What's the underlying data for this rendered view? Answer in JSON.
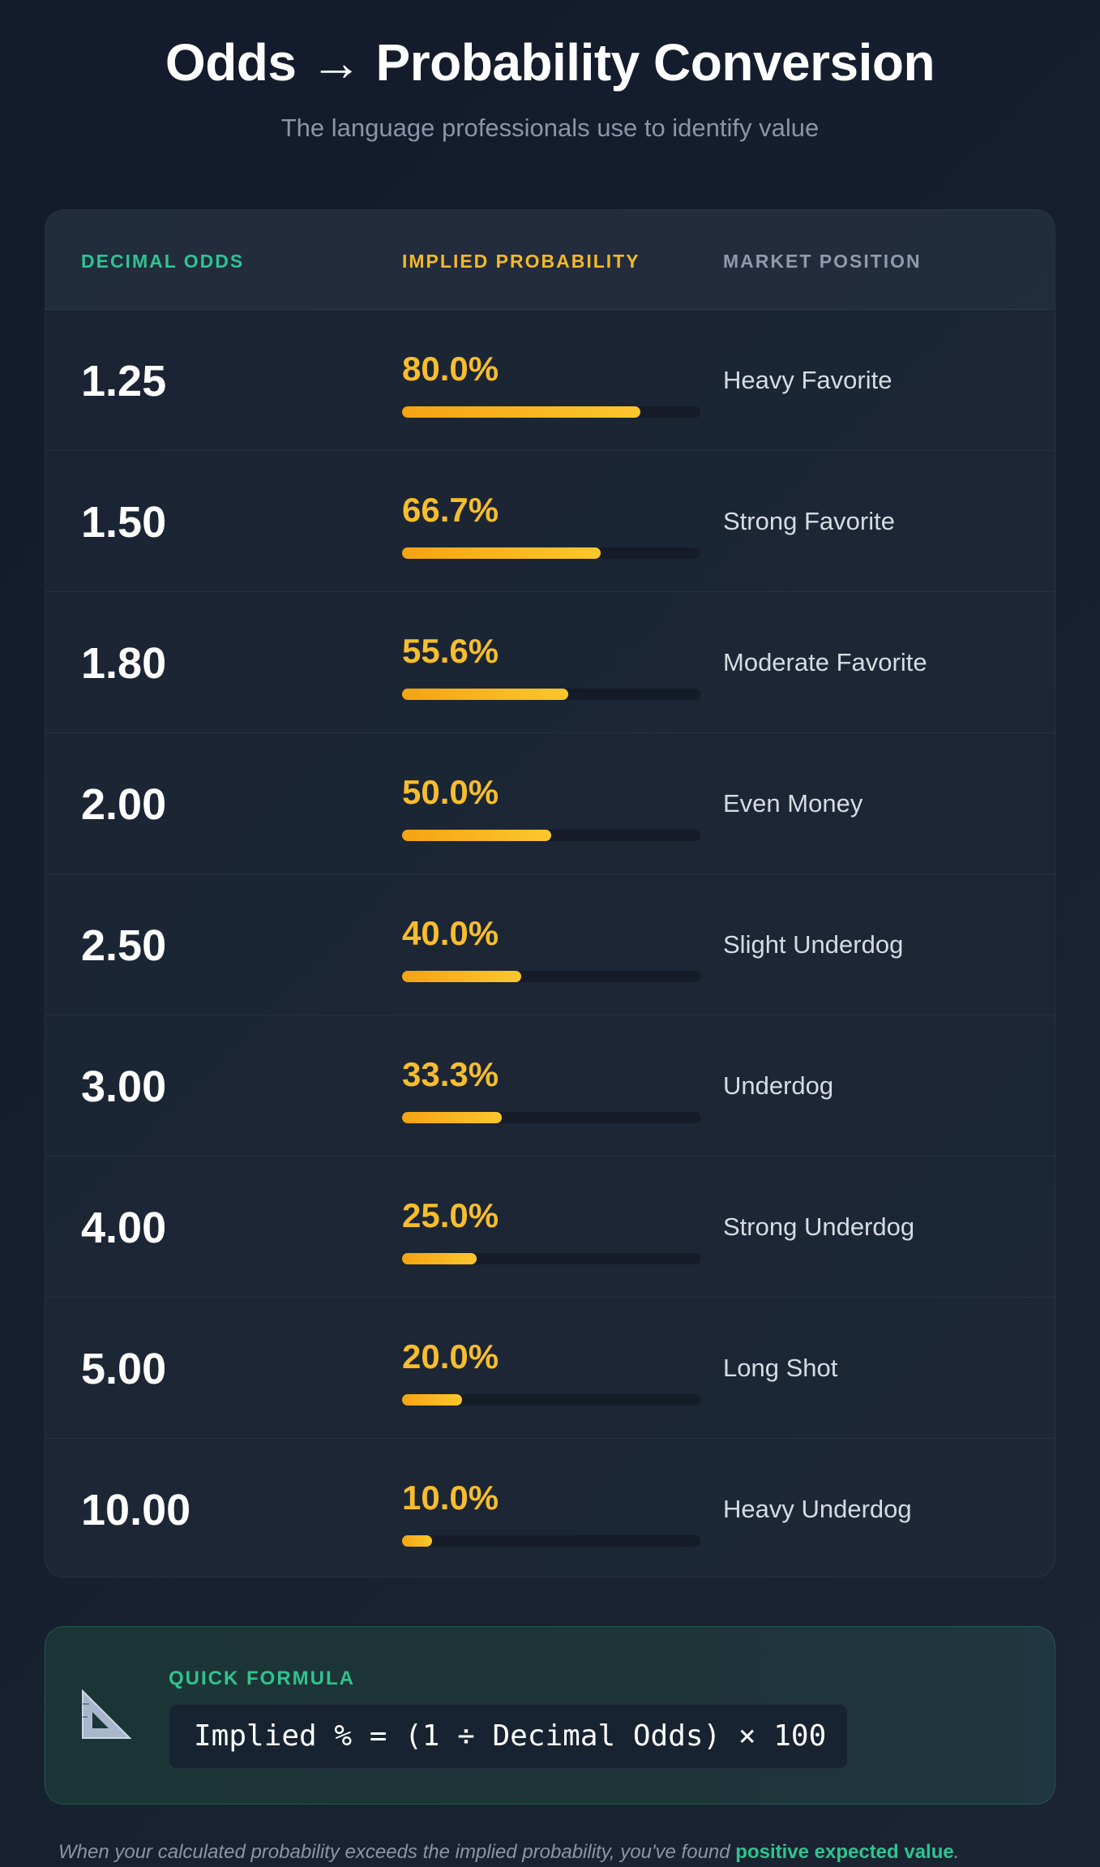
{
  "header": {
    "title": "Odds → Probability Conversion",
    "subtitle": "The language professionals use to identify value"
  },
  "table": {
    "columns": {
      "odds": "DECIMAL ODDS",
      "probability": "IMPLIED PROBABILITY",
      "position": "MARKET POSITION"
    },
    "rows": [
      {
        "odds": "1.25",
        "probability": "80.0%",
        "fraction": 0.8,
        "position": "Heavy Favorite"
      },
      {
        "odds": "1.50",
        "probability": "66.7%",
        "fraction": 0.667,
        "position": "Strong Favorite"
      },
      {
        "odds": "1.80",
        "probability": "55.6%",
        "fraction": 0.556,
        "position": "Moderate Favorite"
      },
      {
        "odds": "2.00",
        "probability": "50.0%",
        "fraction": 0.5,
        "position": "Even Money"
      },
      {
        "odds": "2.50",
        "probability": "40.0%",
        "fraction": 0.4,
        "position": "Slight Underdog"
      },
      {
        "odds": "3.00",
        "probability": "33.3%",
        "fraction": 0.333,
        "position": "Underdog"
      },
      {
        "odds": "4.00",
        "probability": "25.0%",
        "fraction": 0.25,
        "position": "Strong Underdog"
      },
      {
        "odds": "5.00",
        "probability": "20.0%",
        "fraction": 0.2,
        "position": "Long Shot"
      },
      {
        "odds": "10.00",
        "probability": "10.0%",
        "fraction": 0.1,
        "position": "Heavy Underdog"
      }
    ]
  },
  "formula": {
    "icon": "ruler-triangle-icon",
    "label": "QUICK FORMULA",
    "expression": "Implied % = (1 ÷ Decimal Odds) × 100"
  },
  "footnote": {
    "text": "When your calculated probability exceeds the implied probability, you've found ",
    "highlight": "positive expected value",
    "end": "."
  },
  "colors": {
    "accent_green": "#2fc48f",
    "accent_gold": "#f5b82a"
  }
}
